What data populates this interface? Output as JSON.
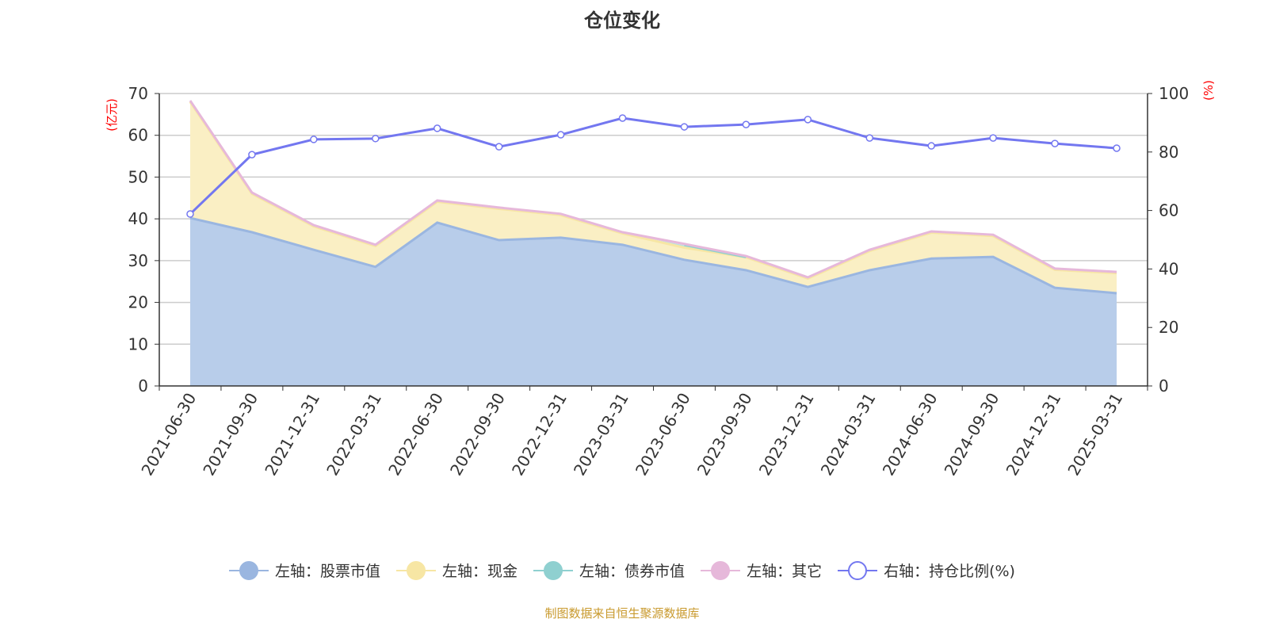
{
  "chart_data": {
    "type": "area",
    "title": "仓位变化",
    "categories": [
      "2021-06-30",
      "2021-09-30",
      "2021-12-31",
      "2022-03-31",
      "2022-06-30",
      "2022-09-30",
      "2022-12-31",
      "2023-03-31",
      "2023-06-30",
      "2023-09-30",
      "2023-12-31",
      "2024-03-31",
      "2024-06-30",
      "2024-09-30",
      "2024-12-31",
      "2025-03-31"
    ],
    "left_axis": {
      "label": "(亿元)",
      "ylim": [
        0,
        70
      ],
      "ticks": [
        0,
        10,
        20,
        30,
        40,
        50,
        60,
        70
      ]
    },
    "right_axis": {
      "label": "(%)",
      "ylim": [
        0,
        100
      ],
      "ticks": [
        0,
        20,
        40,
        60,
        80,
        100
      ]
    },
    "stacked": true,
    "grid": true,
    "legend_position": "bottom",
    "series": [
      {
        "name": "左轴：股票市值",
        "axis": "left",
        "color": "#9ab6e0",
        "fill": "#b8cdea",
        "values": [
          40.2,
          36.8,
          32.6,
          28.5,
          39.1,
          34.9,
          35.5,
          33.8,
          30.2,
          27.7,
          23.7,
          27.7,
          30.5,
          30.9,
          23.5,
          22.2
        ]
      },
      {
        "name": "左轴：现金",
        "axis": "left",
        "color": "#f7e6a4",
        "fill": "#faefc4",
        "values": [
          27.8,
          9.2,
          5.6,
          5.0,
          5.0,
          7.5,
          5.4,
          2.7,
          2.9,
          3.1,
          2.0,
          4.6,
          6.2,
          5.0,
          4.3,
          4.8
        ]
      },
      {
        "name": "左轴：债券市值",
        "axis": "left",
        "color": "#8fd0d0",
        "fill": "#b5e2e2",
        "values": [
          0,
          0,
          0,
          0,
          0,
          0,
          0,
          0,
          0.6,
          0,
          0,
          0,
          0,
          0,
          0,
          0
        ]
      },
      {
        "name": "左轴：其它",
        "axis": "left",
        "color": "#e6b8da",
        "fill": "#efd3e7",
        "values": [
          0.3,
          0.3,
          0.3,
          0.3,
          0.3,
          0.3,
          0.3,
          0.3,
          0.3,
          0.3,
          0.3,
          0.3,
          0.3,
          0.3,
          0.3,
          0.3
        ]
      },
      {
        "name": "右轴：持仓比例(%)",
        "axis": "right",
        "type": "line",
        "color": "#7377f0",
        "values": [
          58.8,
          79.1,
          84.3,
          84.6,
          88.1,
          81.8,
          85.9,
          91.6,
          88.6,
          89.4,
          91.1,
          84.8,
          82.1,
          84.8,
          82.9,
          81.3
        ]
      }
    ]
  },
  "source": "制图数据来自恒生聚源数据库"
}
